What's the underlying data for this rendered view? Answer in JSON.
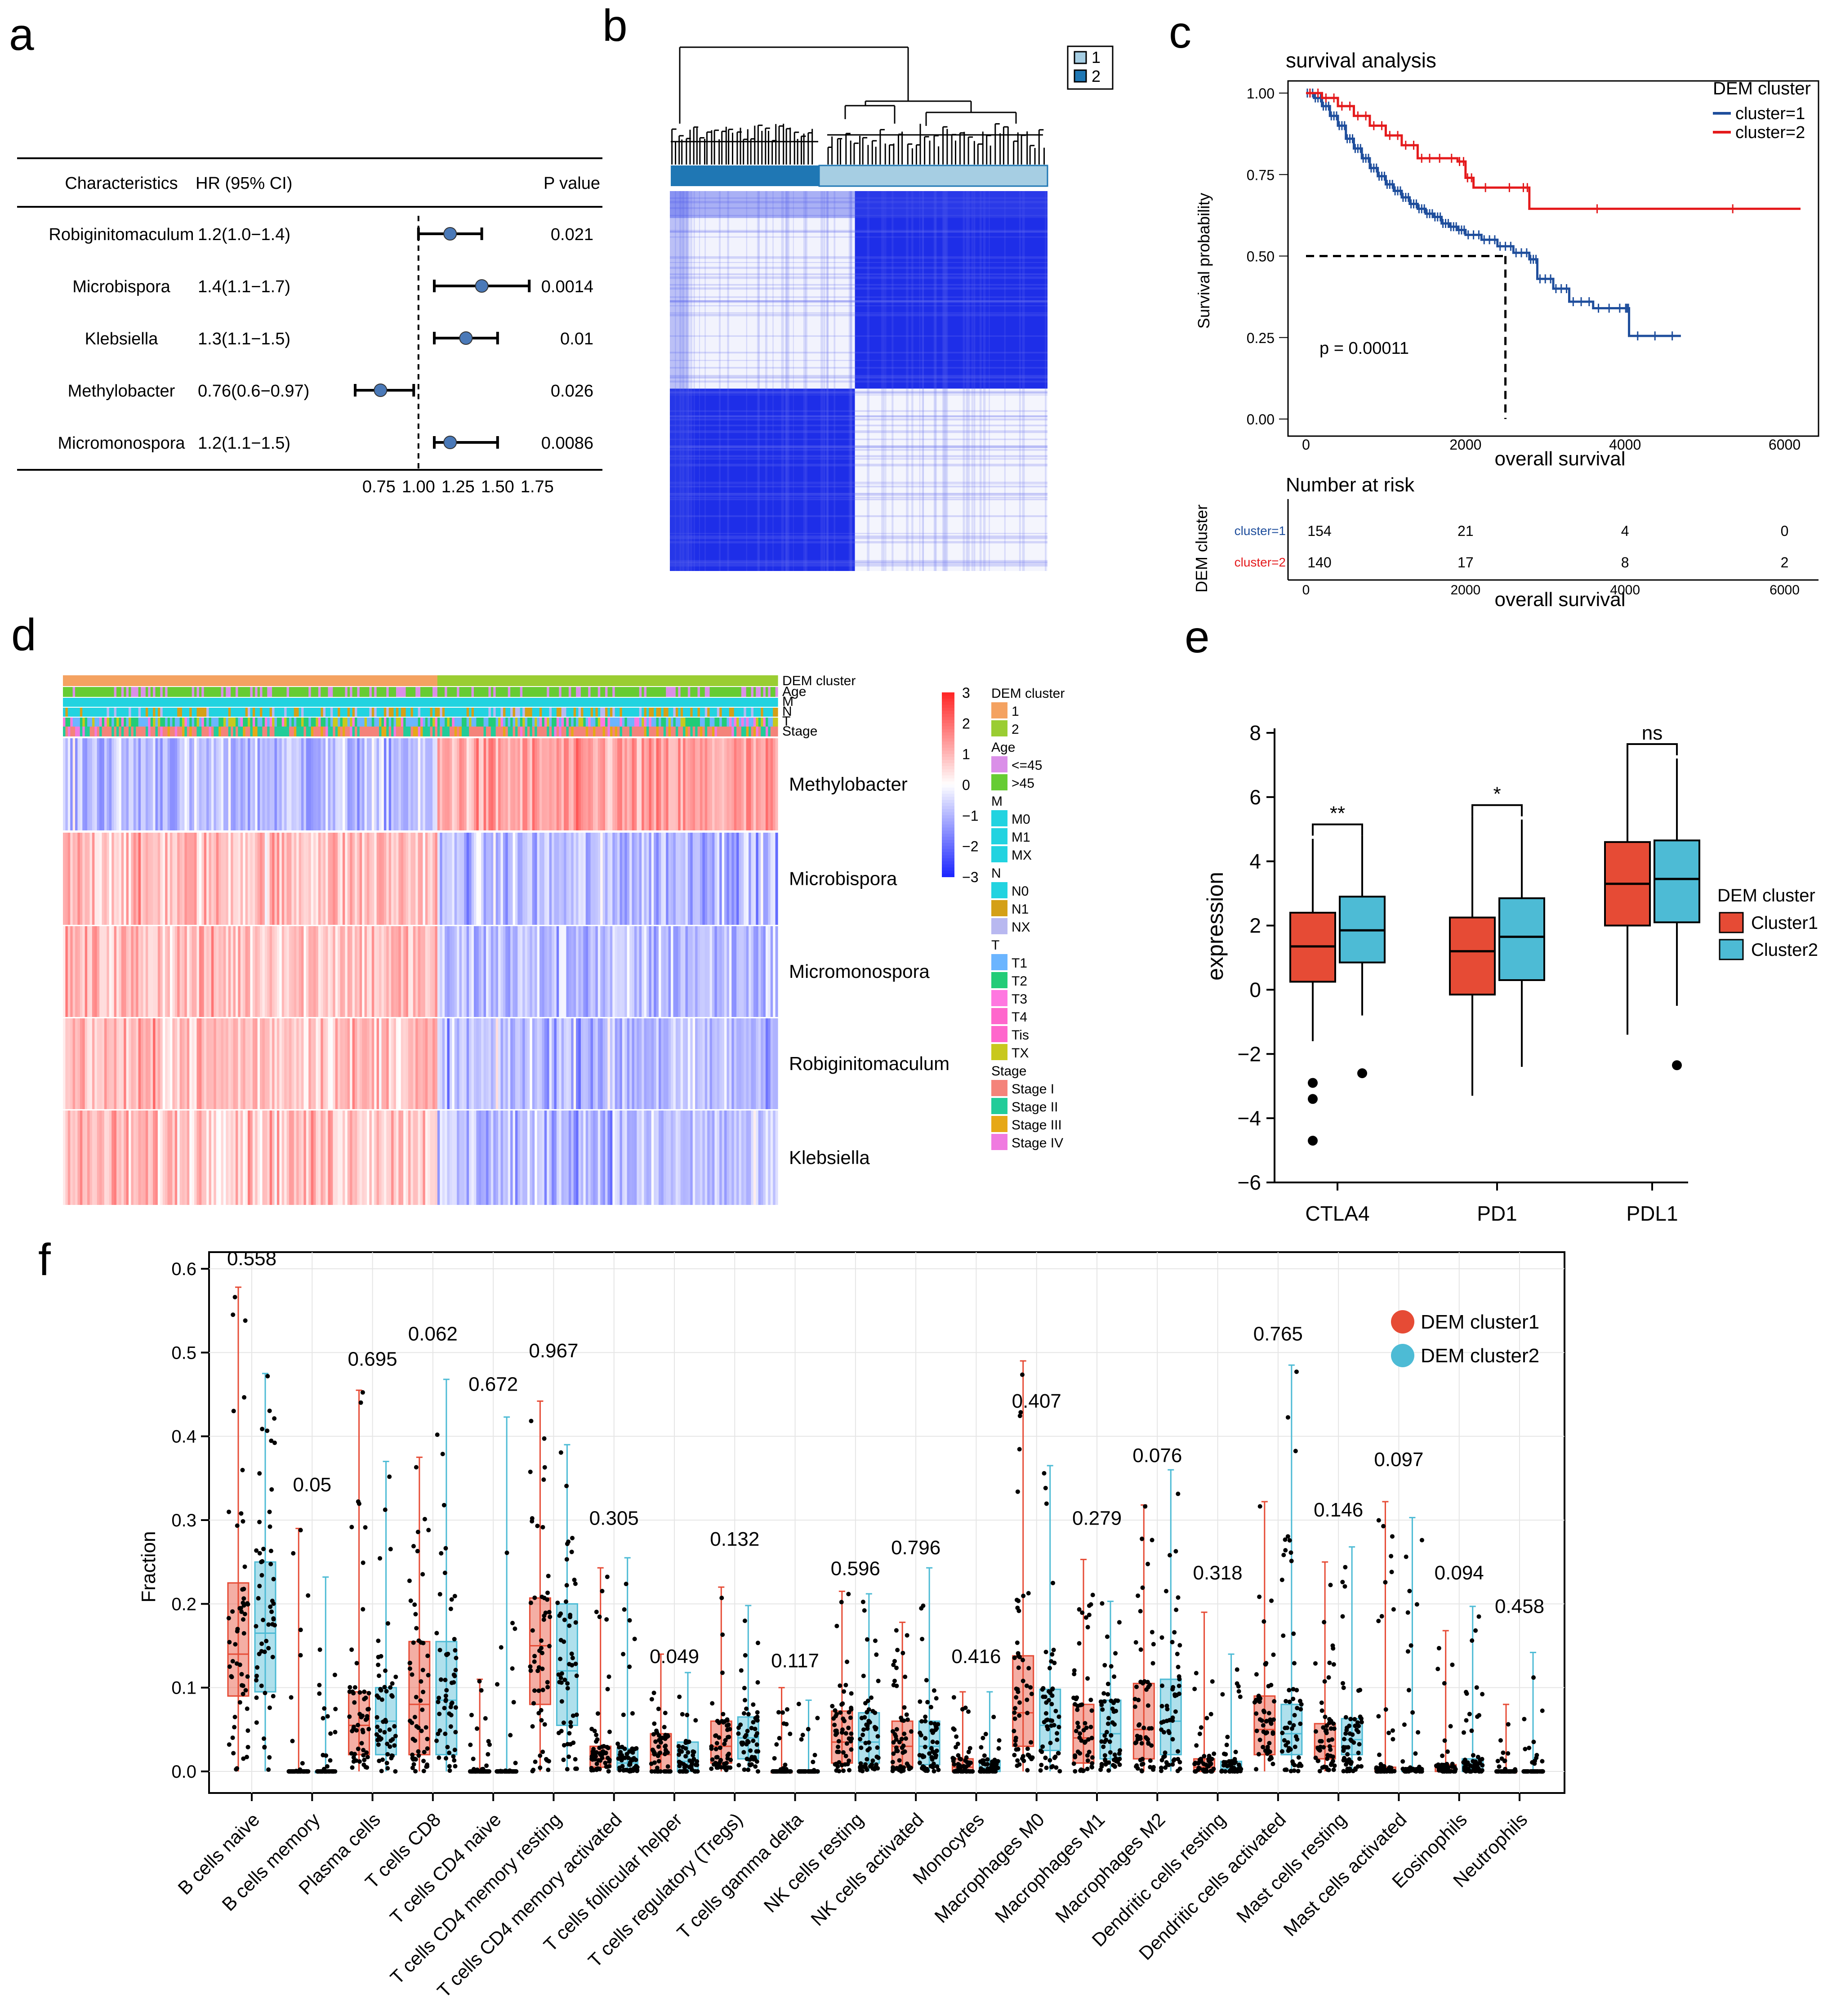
{
  "panel_labels": {
    "a": "a",
    "b": "b",
    "c": "c",
    "d": "d",
    "e": "e",
    "f": "f"
  },
  "colors": {
    "cluster1_red": "#E64B35",
    "cluster2_blue": "#4DBBD5",
    "km1": "#1F4E9C",
    "km2": "#E41A1C",
    "heat_high": "#E8262C",
    "heat_low": "#1F2BE6",
    "consensus": "#1E2EE8"
  },
  "chart_data": [
    {
      "id": "a",
      "type": "forest",
      "headers": {
        "characteristics": "Characteristics",
        "hr": "HR (95% CI)",
        "p": "P value"
      },
      "rows": [
        {
          "name": "Robiginitomaculum",
          "hr_text": "1.2(1.0−1.4)",
          "hr": 1.2,
          "lo": 1.0,
          "hi": 1.4,
          "p": "0.021"
        },
        {
          "name": "Microbispora",
          "hr_text": "1.4(1.1−1.7)",
          "hr": 1.4,
          "lo": 1.1,
          "hi": 1.7,
          "p": "0.0014"
        },
        {
          "name": "Klebsiella",
          "hr_text": "1.3(1.1−1.5)",
          "hr": 1.3,
          "lo": 1.1,
          "hi": 1.5,
          "p": "0.01"
        },
        {
          "name": "Methylobacter",
          "hr_text": "0.76(0.6−0.97)",
          "hr": 0.76,
          "lo": 0.6,
          "hi": 0.97,
          "p": "0.026"
        },
        {
          "name": "Micromonospora",
          "hr_text": "1.2(1.1−1.5)",
          "hr": 1.2,
          "lo": 1.1,
          "hi": 1.5,
          "p": "0.0086"
        }
      ],
      "xticks": [
        "0.75",
        "1.00",
        "1.25",
        "1.50",
        "1.75"
      ],
      "xlim": [
        0.6,
        1.85
      ],
      "ref": 1.0
    },
    {
      "id": "b",
      "type": "heatmap",
      "legend": [
        "1",
        "2"
      ],
      "cluster_sizes": [
        154,
        140
      ]
    },
    {
      "id": "c",
      "type": "line",
      "title": "survival analysis",
      "xlabel": "overall survival",
      "ylabel": "Survival probability",
      "xticks": [
        "0",
        "2000",
        "4000",
        "6000"
      ],
      "yticks": [
        "0.00",
        "0.25",
        "0.50",
        "0.75",
        "1.00"
      ],
      "xlim": [
        0,
        6200
      ],
      "ylim": [
        0,
        1
      ],
      "legend_title": "DEM cluster",
      "series": [
        {
          "name": "cluster=1",
          "points": [
            [
              0,
              1.0
            ],
            [
              100,
              0.985
            ],
            [
              200,
              0.96
            ],
            [
              300,
              0.93
            ],
            [
              400,
              0.9
            ],
            [
              500,
              0.86
            ],
            [
              600,
              0.83
            ],
            [
              700,
              0.8
            ],
            [
              800,
              0.77
            ],
            [
              900,
              0.745
            ],
            [
              1000,
              0.72
            ],
            [
              1100,
              0.7
            ],
            [
              1200,
              0.68
            ],
            [
              1300,
              0.66
            ],
            [
              1400,
              0.645
            ],
            [
              1500,
              0.63
            ],
            [
              1600,
              0.62
            ],
            [
              1700,
              0.6
            ],
            [
              1800,
              0.59
            ],
            [
              1900,
              0.58
            ],
            [
              2000,
              0.565
            ],
            [
              2200,
              0.55
            ],
            [
              2400,
              0.53
            ],
            [
              2600,
              0.51
            ],
            [
              2800,
              0.49
            ],
            [
              2900,
              0.43
            ],
            [
              3100,
              0.4
            ],
            [
              3300,
              0.36
            ],
            [
              3600,
              0.34
            ],
            [
              4000,
              0.34
            ],
            [
              4050,
              0.255
            ],
            [
              4700,
              0.255
            ]
          ]
        },
        {
          "name": "cluster=2",
          "points": [
            [
              0,
              1.0
            ],
            [
              200,
              0.985
            ],
            [
              400,
              0.96
            ],
            [
              600,
              0.93
            ],
            [
              800,
              0.9
            ],
            [
              1000,
              0.87
            ],
            [
              1200,
              0.84
            ],
            [
              1400,
              0.8
            ],
            [
              1600,
              0.8
            ],
            [
              1900,
              0.79
            ],
            [
              2000,
              0.74
            ],
            [
              2100,
              0.71
            ],
            [
              2700,
              0.71
            ],
            [
              2800,
              0.645
            ],
            [
              6200,
              0.645
            ]
          ]
        }
      ],
      "pvalue": "p = 0.00011",
      "median_x": 2500,
      "risk": {
        "title": "Number at risk",
        "ylabel": "DEM cluster",
        "rows": [
          {
            "label": "cluster=1",
            "values": [
              "154",
              "21",
              "4",
              "0"
            ]
          },
          {
            "label": "cluster=2",
            "values": [
              "140",
              "17",
              "8",
              "2"
            ]
          }
        ],
        "xticks": [
          "0",
          "2000",
          "4000",
          "6000"
        ],
        "xlabel": "overall survival"
      }
    },
    {
      "id": "d",
      "type": "heatmap",
      "annotation_rows": [
        "DEM cluster",
        "Age",
        "M",
        "N",
        "T",
        "Stage"
      ],
      "rows": [
        "Methylobacter",
        "Microbispora",
        "Micromonospora",
        "Robiginitomaculum",
        "Klebsiella"
      ],
      "colorbar_ticks": [
        "3",
        "2",
        "1",
        "0",
        "−1",
        "−2",
        "−3"
      ],
      "legend_groups": [
        {
          "title": "DEM cluster",
          "items": [
            {
              "label": "1",
              "color": "#F4A261"
            },
            {
              "label": "2",
              "color": "#9ACD32"
            }
          ]
        },
        {
          "title": "Age",
          "items": [
            {
              "label": "<=45",
              "color": "#DA8FE8"
            },
            {
              "label": ">45",
              "color": "#66CC33"
            }
          ]
        },
        {
          "title": "M",
          "items": [
            {
              "label": "M0",
              "color": "#22D3E0"
            },
            {
              "label": "M1",
              "color": "#22D3E0"
            },
            {
              "label": "MX",
              "color": "#22D3E0"
            }
          ]
        },
        {
          "title": "N",
          "items": [
            {
              "label": "N0",
              "color": "#22D3E0"
            },
            {
              "label": "N1",
              "color": "#D4A017"
            },
            {
              "label": "NX",
              "color": "#B8B8F0"
            }
          ]
        },
        {
          "title": "T",
          "items": [
            {
              "label": "T1",
              "color": "#6BB5FF"
            },
            {
              "label": "T2",
              "color": "#22CC77"
            },
            {
              "label": "T3",
              "color": "#FF77E0"
            },
            {
              "label": "T4",
              "color": "#FF66CC"
            },
            {
              "label": "Tis",
              "color": "#FF66CC"
            },
            {
              "label": "TX",
              "color": "#C8C81E"
            }
          ]
        },
        {
          "title": "Stage",
          "items": [
            {
              "label": "Stage I",
              "color": "#F4837A"
            },
            {
              "label": "Stage II",
              "color": "#22CC99"
            },
            {
              "label": "Stage III",
              "color": "#E6A817"
            },
            {
              "label": "Stage IV",
              "color": "#F07AE0"
            }
          ]
        }
      ]
    },
    {
      "id": "e",
      "type": "box",
      "ylabel": "expression",
      "ylim": [
        -6,
        8
      ],
      "yticks": [
        "−6",
        "−4",
        "−2",
        "0",
        "2",
        "4",
        "6",
        "8"
      ],
      "categories": [
        "CTLA4",
        "PD1",
        "PDL1"
      ],
      "significance": [
        "**",
        "*",
        "ns"
      ],
      "legend_title": "DEM cluster",
      "series": [
        {
          "name": "Cluster1",
          "boxes": [
            {
              "min": -1.6,
              "q1": 0.25,
              "median": 1.35,
              "q3": 2.4,
              "max": 4.7,
              "outliers": [
                -2.9,
                -3.4,
                -4.7
              ]
            },
            {
              "min": -3.3,
              "q1": -0.15,
              "median": 1.2,
              "q3": 2.25,
              "max": 5.4,
              "outliers": []
            },
            {
              "min": -1.4,
              "q1": 2.0,
              "median": 3.3,
              "q3": 4.6,
              "max": 7.3,
              "outliers": []
            }
          ]
        },
        {
          "name": "Cluster2",
          "boxes": [
            {
              "min": -0.8,
              "q1": 0.85,
              "median": 1.85,
              "q3": 2.9,
              "max": 4.8,
              "outliers": [
                -2.6
              ]
            },
            {
              "min": -2.4,
              "q1": 0.3,
              "median": 1.65,
              "q3": 2.85,
              "max": 5.3,
              "outliers": []
            },
            {
              "min": -0.5,
              "q1": 2.1,
              "median": 3.45,
              "q3": 4.65,
              "max": 7.2,
              "outliers": [
                -2.35
              ]
            }
          ]
        }
      ]
    },
    {
      "id": "f",
      "type": "box",
      "ylabel": "Fraction",
      "ylim": [
        0,
        0.65
      ],
      "yticks": [
        "0.0",
        "0.1",
        "0.2",
        "0.3",
        "0.4",
        "0.5",
        "0.6"
      ],
      "legend": [
        "DEM cluster1",
        "DEM cluster2"
      ],
      "categories": [
        "B cells naive",
        "B cells memory",
        "Plasma cells",
        "T cells CD8",
        "T cells CD4 naive",
        "T cells CD4 memory resting",
        "T cells CD4 memory activated",
        "T cells follicular helper",
        "T cells regulatory (Tregs)",
        "T cells gamma delta",
        "NK cells resting",
        "NK cells activated",
        "Monocytes",
        "Macrophages M0",
        "Macrophages M1",
        "Macrophages M2",
        "Dendritic cells resting",
        "Dendritic cells activated",
        "Mast cells resting",
        "Mast cells activated",
        "Eosinophils",
        "Neutrophils"
      ],
      "pvalues": [
        "0.558",
        "0.05",
        "0.695",
        "0.062",
        "0.672",
        "0.967",
        "0.305",
        "0.049",
        "0.132",
        "0.117",
        "0.596",
        "0.796",
        "0.416",
        "0.407",
        "0.279",
        "0.076",
        "0.318",
        "0.765",
        "0.146",
        "0.097",
        "0.094",
        "0.458"
      ],
      "pvalue_y": [
        0.6,
        0.33,
        0.48,
        0.51,
        0.45,
        0.49,
        0.29,
        0.125,
        0.265,
        0.12,
        0.23,
        0.255,
        0.125,
        0.43,
        0.29,
        0.365,
        0.225,
        0.51,
        0.3,
        0.36,
        0.225,
        0.185
      ],
      "cluster1": [
        {
          "min": 0,
          "q1": 0.09,
          "median": 0.14,
          "q3": 0.225,
          "max": 0.578
        },
        {
          "min": 0,
          "q1": 0,
          "median": 0,
          "q3": 0,
          "max": 0.29
        },
        {
          "min": 0,
          "q1": 0.02,
          "median": 0.055,
          "q3": 0.095,
          "max": 0.455
        },
        {
          "min": 0,
          "q1": 0.02,
          "median": 0.08,
          "q3": 0.155,
          "max": 0.375
        },
        {
          "min": 0,
          "q1": 0,
          "median": 0,
          "q3": 0,
          "max": 0.11
        },
        {
          "min": 0,
          "q1": 0.08,
          "median": 0.15,
          "q3": 0.207,
          "max": 0.442
        },
        {
          "min": 0,
          "q1": 0.005,
          "median": 0.015,
          "q3": 0.03,
          "max": 0.243
        },
        {
          "min": 0,
          "q1": 0,
          "median": 0.02,
          "q3": 0.045,
          "max": 0.14
        },
        {
          "min": 0,
          "q1": 0.01,
          "median": 0.03,
          "q3": 0.06,
          "max": 0.22
        },
        {
          "min": 0,
          "q1": 0,
          "median": 0,
          "q3": 0,
          "max": 0.1
        },
        {
          "min": 0,
          "q1": 0.01,
          "median": 0.035,
          "q3": 0.072,
          "max": 0.215
        },
        {
          "min": 0,
          "q1": 0.005,
          "median": 0.03,
          "q3": 0.06,
          "max": 0.178
        },
        {
          "min": 0,
          "q1": 0,
          "median": 0.005,
          "q3": 0.015,
          "max": 0.095
        },
        {
          "min": 0,
          "q1": 0.03,
          "median": 0.07,
          "q3": 0.138,
          "max": 0.49
        },
        {
          "min": 0,
          "q1": 0.01,
          "median": 0.04,
          "q3": 0.08,
          "max": 0.253
        },
        {
          "min": 0,
          "q1": 0.015,
          "median": 0.05,
          "q3": 0.105,
          "max": 0.318
        },
        {
          "min": 0,
          "q1": 0,
          "median": 0.005,
          "q3": 0.015,
          "max": 0.19
        },
        {
          "min": 0,
          "q1": 0.02,
          "median": 0.05,
          "q3": 0.09,
          "max": 0.322
        },
        {
          "min": 0,
          "q1": 0.015,
          "median": 0.03,
          "q3": 0.057,
          "max": 0.25
        },
        {
          "min": 0,
          "q1": 0,
          "median": 0,
          "q3": 0.005,
          "max": 0.322
        },
        {
          "min": 0,
          "q1": 0,
          "median": 0,
          "q3": 0.008,
          "max": 0.168
        },
        {
          "min": 0,
          "q1": 0,
          "median": 0,
          "q3": 0,
          "max": 0.08
        }
      ],
      "cluster2": [
        {
          "min": 0,
          "q1": 0.095,
          "median": 0.165,
          "q3": 0.25,
          "max": 0.475
        },
        {
          "min": 0,
          "q1": 0,
          "median": 0,
          "q3": 0,
          "max": 0.232
        },
        {
          "min": 0,
          "q1": 0.02,
          "median": 0.06,
          "q3": 0.1,
          "max": 0.37
        },
        {
          "min": 0,
          "q1": 0.02,
          "median": 0.085,
          "q3": 0.155,
          "max": 0.468
        },
        {
          "min": 0,
          "q1": 0,
          "median": 0,
          "q3": 0,
          "max": 0.423
        },
        {
          "min": 0,
          "q1": 0.055,
          "median": 0.12,
          "q3": 0.2,
          "max": 0.39
        },
        {
          "min": 0,
          "q1": 0.002,
          "median": 0.01,
          "q3": 0.027,
          "max": 0.255
        },
        {
          "min": 0,
          "q1": 0,
          "median": 0.012,
          "q3": 0.035,
          "max": 0.118
        },
        {
          "min": 0,
          "q1": 0.015,
          "median": 0.04,
          "q3": 0.065,
          "max": 0.198
        },
        {
          "min": 0,
          "q1": 0,
          "median": 0,
          "q3": 0,
          "max": 0.085
        },
        {
          "min": 0,
          "q1": 0.01,
          "median": 0.035,
          "q3": 0.07,
          "max": 0.212
        },
        {
          "min": 0,
          "q1": 0.008,
          "median": 0.03,
          "q3": 0.06,
          "max": 0.243
        },
        {
          "min": 0,
          "q1": 0,
          "median": 0.004,
          "q3": 0.013,
          "max": 0.095
        },
        {
          "min": 0,
          "q1": 0.025,
          "median": 0.055,
          "q3": 0.098,
          "max": 0.365
        },
        {
          "min": 0,
          "q1": 0.015,
          "median": 0.045,
          "q3": 0.085,
          "max": 0.203
        },
        {
          "min": 0,
          "q1": 0.02,
          "median": 0.06,
          "q3": 0.11,
          "max": 0.36
        },
        {
          "min": 0,
          "q1": 0,
          "median": 0.003,
          "q3": 0.012,
          "max": 0.14
        },
        {
          "min": 0,
          "q1": 0.02,
          "median": 0.045,
          "q3": 0.08,
          "max": 0.485
        },
        {
          "min": 0,
          "q1": 0.02,
          "median": 0.038,
          "q3": 0.063,
          "max": 0.268
        },
        {
          "min": 0,
          "q1": 0,
          "median": 0,
          "q3": 0.003,
          "max": 0.303
        },
        {
          "min": 0,
          "q1": 0,
          "median": 0.003,
          "q3": 0.015,
          "max": 0.197
        },
        {
          "min": 0,
          "q1": 0,
          "median": 0,
          "q3": 0,
          "max": 0.142
        }
      ]
    }
  ]
}
